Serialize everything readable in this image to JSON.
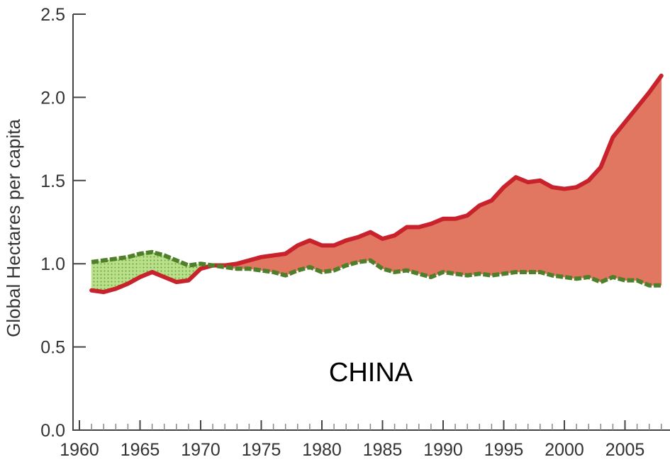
{
  "chart_data": {
    "type": "area",
    "title": "",
    "xlabel": "",
    "ylabel": "Global Hectares per capita",
    "annotation": "CHINA",
    "xlim": [
      1960,
      2008
    ],
    "ylim": [
      0,
      2.5
    ],
    "x_ticks": [
      1960,
      1965,
      1970,
      1975,
      1980,
      1985,
      1990,
      1995,
      2000,
      2005
    ],
    "x_tick_labels": [
      "1960",
      "1965",
      "1970",
      "1975",
      "1980",
      "1985",
      "1990",
      "1995",
      "2000",
      "2005"
    ],
    "y_ticks": [
      0,
      0.5,
      1,
      1.5,
      2,
      2.5
    ],
    "y_tick_labels": [
      "0.0",
      "0.5",
      "1.0",
      "1.5",
      "2.0",
      "2.5"
    ],
    "grid": false,
    "x": [
      1961,
      1962,
      1963,
      1964,
      1965,
      1966,
      1967,
      1968,
      1969,
      1970,
      1971,
      1972,
      1973,
      1974,
      1975,
      1976,
      1977,
      1978,
      1979,
      1980,
      1981,
      1982,
      1983,
      1984,
      1985,
      1986,
      1987,
      1988,
      1989,
      1990,
      1991,
      1992,
      1993,
      1994,
      1995,
      1996,
      1997,
      1998,
      1999,
      2000,
      2001,
      2002,
      2003,
      2004,
      2005,
      2006,
      2007,
      2008
    ],
    "series": [
      {
        "values": [
          0.84,
          0.83,
          0.85,
          0.88,
          0.92,
          0.95,
          0.92,
          0.89,
          0.9,
          0.97,
          0.99,
          0.99,
          1.0,
          1.02,
          1.04,
          1.05,
          1.06,
          1.11,
          1.14,
          1.11,
          1.11,
          1.14,
          1.16,
          1.19,
          1.15,
          1.17,
          1.22,
          1.22,
          1.24,
          1.27,
          1.27,
          1.29,
          1.35,
          1.38,
          1.46,
          1.52,
          1.49,
          1.5,
          1.46,
          1.45,
          1.46,
          1.5,
          1.58,
          1.76,
          1.85,
          1.94,
          2.03,
          2.13
        ],
        "color": "#c8232c",
        "style": "solid"
      },
      {
        "values": [
          1.01,
          1.02,
          1.03,
          1.04,
          1.06,
          1.07,
          1.05,
          1.02,
          0.99,
          1.0,
          0.99,
          0.98,
          0.97,
          0.97,
          0.96,
          0.95,
          0.93,
          0.96,
          0.98,
          0.95,
          0.96,
          0.99,
          1.01,
          1.02,
          0.97,
          0.95,
          0.96,
          0.94,
          0.92,
          0.95,
          0.94,
          0.93,
          0.94,
          0.93,
          0.94,
          0.95,
          0.95,
          0.95,
          0.93,
          0.92,
          0.91,
          0.92,
          0.89,
          0.92,
          0.9,
          0.9,
          0.87,
          0.87
        ],
        "color": "#4f7f2a",
        "style": "dashed"
      }
    ],
    "fill_deficit_color": "#e27761",
    "fill_reserve_color": "#a9d46f"
  }
}
